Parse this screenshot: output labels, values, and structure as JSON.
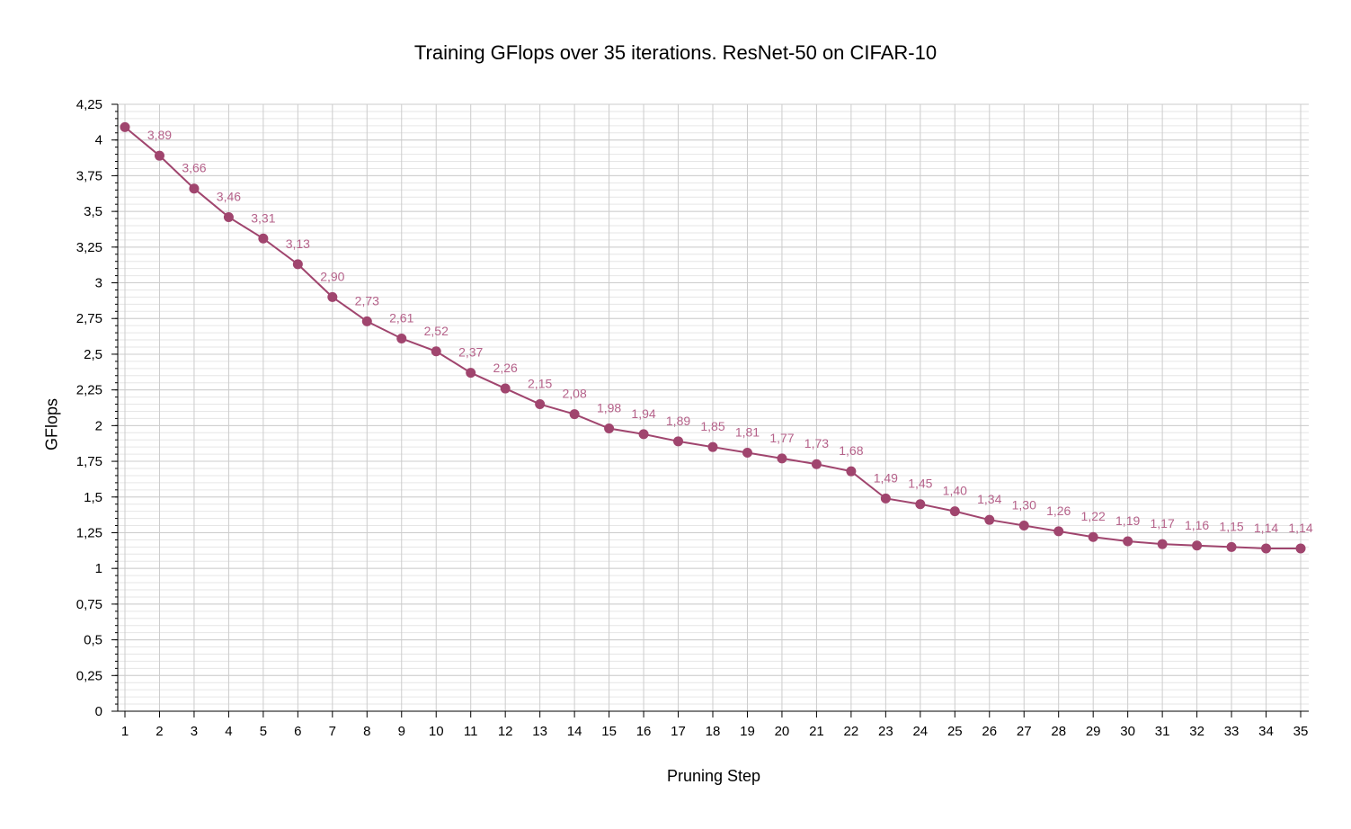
{
  "chart_data": {
    "type": "line",
    "title": "Training GFlops over 35 iterations. ResNet-50 on CIFAR-10",
    "xlabel": "Pruning Step",
    "ylabel": "GFlops",
    "categories": [
      "1",
      "2",
      "3",
      "4",
      "5",
      "6",
      "7",
      "8",
      "9",
      "10",
      "11",
      "12",
      "13",
      "14",
      "15",
      "16",
      "17",
      "18",
      "19",
      "20",
      "21",
      "22",
      "23",
      "24",
      "25",
      "26",
      "27",
      "28",
      "29",
      "30",
      "31",
      "32",
      "33",
      "34",
      "35"
    ],
    "values": [
      4.09,
      3.89,
      3.66,
      3.46,
      3.31,
      3.13,
      2.9,
      2.73,
      2.61,
      2.52,
      2.37,
      2.26,
      2.15,
      2.08,
      1.98,
      1.94,
      1.89,
      1.85,
      1.81,
      1.77,
      1.73,
      1.68,
      1.49,
      1.45,
      1.4,
      1.34,
      1.3,
      1.26,
      1.22,
      1.19,
      1.17,
      1.16,
      1.15,
      1.14,
      1.14
    ],
    "data_labels": [
      "",
      "3,89",
      "3,66",
      "3,46",
      "3,31",
      "3,13",
      "2,90",
      "2,73",
      "2,61",
      "2,52",
      "2,37",
      "2,26",
      "2,15",
      "2,08",
      "1,98",
      "1,94",
      "1,89",
      "1,85",
      "1,81",
      "1,77",
      "1,73",
      "1,68",
      "1,49",
      "1,45",
      "1,40",
      "1,34",
      "1,30",
      "1,26",
      "1,22",
      "1,19",
      "1,17",
      "1,16",
      "1,15",
      "1,14",
      "1,14"
    ],
    "y_ticks": [
      0,
      0.25,
      0.5,
      0.75,
      1,
      1.25,
      1.5,
      1.75,
      2,
      2.25,
      2.5,
      2.75,
      3,
      3.25,
      3.5,
      3.75,
      4,
      4.25
    ],
    "y_tick_labels": [
      "0",
      "0,25",
      "0,5",
      "0,75",
      "1",
      "1,25",
      "1,5",
      "1,75",
      "2",
      "2,25",
      "2,5",
      "2,75",
      "3",
      "3,25",
      "3,5",
      "3,75",
      "4",
      "4,25"
    ],
    "ylim": [
      0,
      4.25
    ],
    "grid": true,
    "legend": "none",
    "colors": {
      "series": "#a0456e",
      "label": "#b5628a",
      "grid_major": "#cccccc",
      "grid_minor": "#e6e6e6"
    }
  }
}
